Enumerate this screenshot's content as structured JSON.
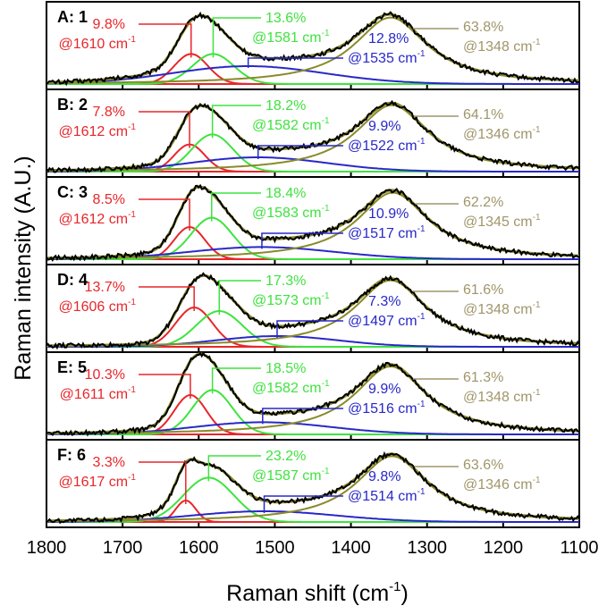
{
  "chart_data": {
    "type": "line",
    "xlabel": "Raman shift (cm",
    "xlabel_sup": "-1",
    "xlabel_end": ")",
    "ylabel": "Raman intensity (A.U.)",
    "xlim": [
      1800,
      1100
    ],
    "x_ticks": [
      "1800",
      "1700",
      "1600",
      "1500",
      "1400",
      "1300",
      "1200",
      "1100"
    ],
    "x_tick_values": [
      1800,
      1700,
      1600,
      1500,
      1400,
      1300,
      1200,
      1100
    ],
    "unit": "cm",
    "unit_sup": "-1",
    "component_colors": {
      "red": "#e8262a",
      "green": "#3ee33e",
      "blue": "#2828c8",
      "olive": "#8a8a2a",
      "label_tan": "#a0966a",
      "spectrum": "#000000"
    },
    "panels": [
      {
        "label": "A: 1",
        "peaks": [
          {
            "component": "red",
            "percent": "9.8%",
            "position": "@1610",
            "center": 1610,
            "height": 0.42,
            "width": 22
          },
          {
            "component": "green",
            "percent": "13.6%",
            "position": "@1581",
            "center": 1581,
            "height": 0.42,
            "width": 27
          },
          {
            "component": "blue",
            "percent": "12.8%",
            "position": "@1535",
            "center": 1535,
            "height": 0.25,
            "width": 100
          },
          {
            "component": "olive",
            "percent": "63.8%",
            "position": "@1348",
            "center": 1348,
            "height": 0.93,
            "width": 58
          }
        ]
      },
      {
        "label": "B: 2",
        "peaks": [
          {
            "component": "red",
            "percent": "7.8%",
            "position": "@1612",
            "center": 1612,
            "height": 0.38,
            "width": 20
          },
          {
            "component": "green",
            "percent": "18.2%",
            "position": "@1582",
            "center": 1582,
            "height": 0.52,
            "width": 27
          },
          {
            "component": "blue",
            "percent": "9.9%",
            "position": "@1522",
            "center": 1522,
            "height": 0.2,
            "width": 90
          },
          {
            "component": "olive",
            "percent": "64.1%",
            "position": "@1346",
            "center": 1346,
            "height": 0.93,
            "width": 58
          }
        ]
      },
      {
        "label": "C: 3",
        "peaks": [
          {
            "component": "red",
            "percent": "8.5%",
            "position": "@1612",
            "center": 1612,
            "height": 0.45,
            "width": 20
          },
          {
            "component": "green",
            "percent": "18.4%",
            "position": "@1583",
            "center": 1583,
            "height": 0.58,
            "width": 27
          },
          {
            "component": "blue",
            "percent": "10.9%",
            "position": "@1517",
            "center": 1517,
            "height": 0.17,
            "width": 95
          },
          {
            "component": "olive",
            "percent": "62.2%",
            "position": "@1345",
            "center": 1345,
            "height": 0.93,
            "width": 57
          }
        ]
      },
      {
        "label": "D: 4",
        "peaks": [
          {
            "component": "red",
            "percent": "13.7%",
            "position": "@1606",
            "center": 1606,
            "height": 0.55,
            "width": 24
          },
          {
            "component": "green",
            "percent": "17.3%",
            "position": "@1573",
            "center": 1573,
            "height": 0.5,
            "width": 30
          },
          {
            "component": "blue",
            "percent": "7.3%",
            "position": "@1497",
            "center": 1497,
            "height": 0.15,
            "width": 80
          },
          {
            "component": "olive",
            "percent": "61.6%",
            "position": "@1348",
            "center": 1348,
            "height": 0.93,
            "width": 57
          }
        ]
      },
      {
        "label": "E: 5",
        "peaks": [
          {
            "component": "red",
            "percent": "10.3%",
            "position": "@1611",
            "center": 1611,
            "height": 0.55,
            "width": 21
          },
          {
            "component": "green",
            "percent": "18.5%",
            "position": "@1582",
            "center": 1582,
            "height": 0.62,
            "width": 26
          },
          {
            "component": "blue",
            "percent": "9.9%",
            "position": "@1516",
            "center": 1516,
            "height": 0.17,
            "width": 90
          },
          {
            "component": "olive",
            "percent": "61.3%",
            "position": "@1348",
            "center": 1348,
            "height": 0.95,
            "width": 57
          }
        ]
      },
      {
        "label": "F: 6",
        "peaks": [
          {
            "component": "red",
            "percent": "3.3%",
            "position": "@1617",
            "center": 1617,
            "height": 0.3,
            "width": 13
          },
          {
            "component": "green",
            "percent": "23.2%",
            "position": "@1587",
            "center": 1587,
            "height": 0.62,
            "width": 33
          },
          {
            "component": "blue",
            "percent": "9.8%",
            "position": "@1514",
            "center": 1514,
            "height": 0.15,
            "width": 95
          },
          {
            "component": "olive",
            "percent": "63.6%",
            "position": "@1346",
            "center": 1346,
            "height": 0.92,
            "width": 57
          }
        ]
      }
    ]
  }
}
